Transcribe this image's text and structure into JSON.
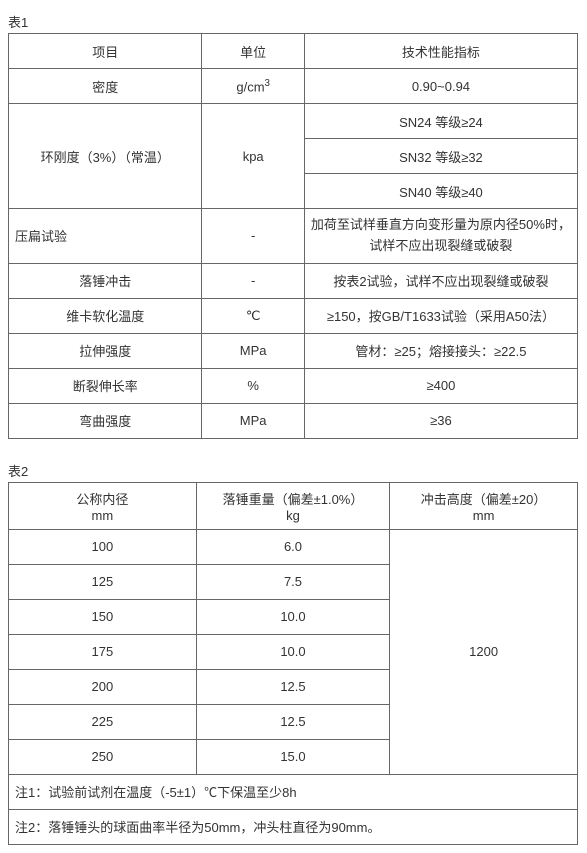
{
  "table1": {
    "caption": "表1",
    "headers": {
      "item": "项目",
      "unit": "单位",
      "spec": "技术性能指标"
    },
    "rows": {
      "density": {
        "item": "密度",
        "unit_html": "g/cm<sup>3</sup>",
        "spec": "0.90~0.94"
      },
      "stiffness": {
        "item": "环刚度（3%）（常温）",
        "unit": "kpa",
        "spec1": "SN24 等级≥24",
        "spec2": "SN32 等级≥32",
        "spec3": "SN40 等级≥40"
      },
      "flatten": {
        "item": "压扁试验",
        "unit": "-",
        "spec": "加荷至试样垂直方向变形量为原内径50%时，试样不应出现裂缝或破裂"
      },
      "drop": {
        "item": "落锤冲击",
        "unit": "-",
        "spec": "按表2试验，试样不应出现裂缝或破裂"
      },
      "vicat": {
        "item": "维卡软化温度",
        "unit": "℃",
        "spec": "≥150，按GB/T1633试验（采用A50法）"
      },
      "tensile": {
        "item": "拉伸强度",
        "unit": "MPa",
        "spec": "管材：≥25；熔接接头：≥22.5"
      },
      "elong": {
        "item": "断裂伸长率",
        "unit": "%",
        "spec": "≥400"
      },
      "bend": {
        "item": "弯曲强度",
        "unit": "MPa",
        "spec": "≥36"
      }
    }
  },
  "table2": {
    "caption": "表2",
    "headers": {
      "dn": {
        "label": "公称内径",
        "unit": "mm"
      },
      "weight": {
        "label": "落锤重量（偏差±1.0%）",
        "unit": "kg"
      },
      "height": {
        "label": "冲击高度（偏差±20）",
        "unit": "mm"
      }
    },
    "rows": [
      {
        "dn": "100",
        "wt": "6.0"
      },
      {
        "dn": "125",
        "wt": "7.5"
      },
      {
        "dn": "150",
        "wt": "10.0"
      },
      {
        "dn": "175",
        "wt": "10.0"
      },
      {
        "dn": "200",
        "wt": "12.5"
      },
      {
        "dn": "225",
        "wt": "12.5"
      },
      {
        "dn": "250",
        "wt": "15.0"
      }
    ],
    "impact_height": "1200",
    "notes": {
      "n1": "注1：试验前试剂在温度（-5±1）℃下保温至少8h",
      "n2": "注2：落锤锤头的球面曲率半径为50mm，冲头柱直径为90mm。"
    }
  }
}
